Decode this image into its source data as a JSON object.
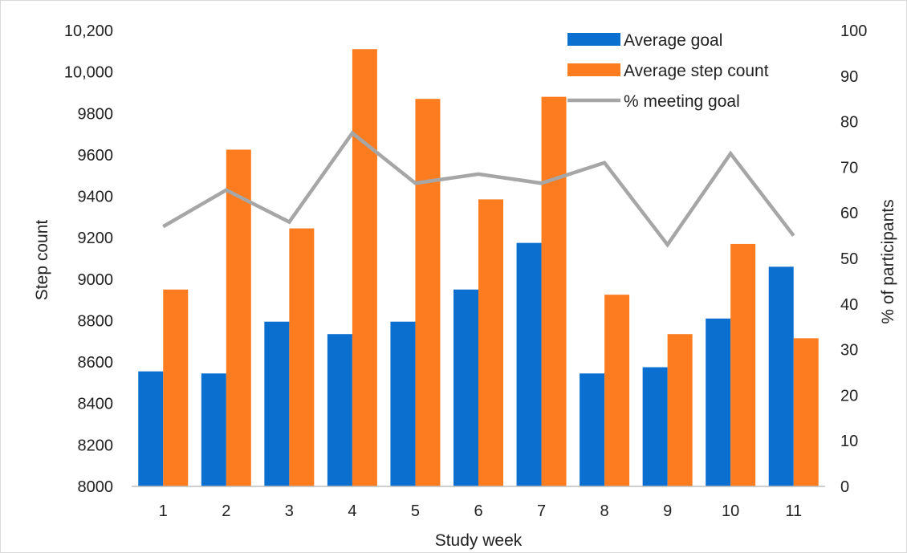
{
  "chart_data": {
    "type": "bar",
    "categories": [
      "1",
      "2",
      "3",
      "4",
      "5",
      "6",
      "7",
      "8",
      "9",
      "10",
      "11"
    ],
    "series": [
      {
        "name": "Average goal",
        "kind": "bar",
        "axis": "left",
        "color": "#0a6fcf",
        "values": [
          8555,
          8545,
          8795,
          8735,
          8795,
          8950,
          9175,
          8545,
          8575,
          8810,
          9060
        ]
      },
      {
        "name": "Average step count",
        "kind": "bar",
        "axis": "left",
        "color": "#fd7c1f",
        "values": [
          8950,
          9625,
          9245,
          10110,
          9870,
          9385,
          9880,
          8925,
          8735,
          9170,
          8715
        ]
      },
      {
        "name": "% meeting goal",
        "kind": "line",
        "axis": "right",
        "color": "#a6a6a6",
        "values": [
          57,
          65,
          58,
          77.5,
          66.5,
          68.5,
          66.5,
          71,
          53,
          73,
          55
        ]
      }
    ],
    "xlabel": "Study week",
    "ylabel": "Step count",
    "y2label": "% of participants",
    "ylim": [
      8000,
      10200
    ],
    "y2lim": [
      0,
      100
    ],
    "yticks": [
      "8000",
      "8200",
      "8400",
      "8600",
      "8800",
      "9000",
      "9200",
      "9400",
      "9600",
      "9800",
      "10,000",
      "10,200"
    ],
    "y2ticks": [
      "0",
      "10",
      "20",
      "30",
      "40",
      "50",
      "60",
      "70",
      "80",
      "90",
      "100"
    ],
    "grid": false,
    "legend": "top-right"
  }
}
